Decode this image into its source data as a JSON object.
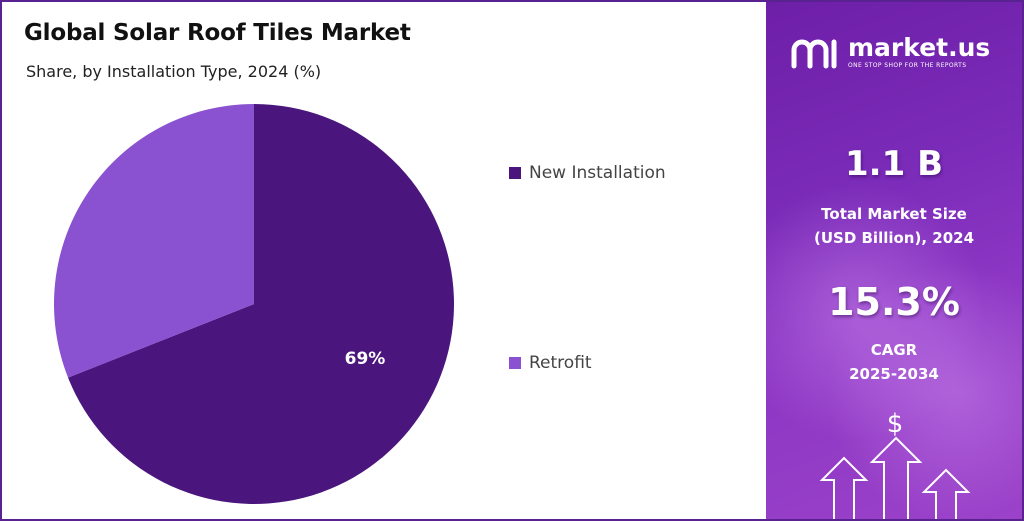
{
  "title": "Global Solar Roof Tiles Market",
  "subtitle": "Share, by Installation Type, 2024 (%)",
  "chart_data": {
    "type": "pie",
    "title": "Global Solar Roof Tiles Market",
    "subtitle": "Share, by Installation Type, 2024 (%)",
    "categories": [
      "New Installation",
      "Retrofit"
    ],
    "values": [
      69,
      31
    ],
    "data_labels": [
      "69%",
      ""
    ],
    "colors": [
      "#4a167e",
      "#8a52d0"
    ],
    "legend_position": "right"
  },
  "sidebar": {
    "brand_name": "market.us",
    "brand_tagline": "ONE STOP SHOP FOR THE REPORTS",
    "market_size_value": "1.1 B",
    "market_size_label_line1": "Total Market Size",
    "market_size_label_line2": "(USD Billion), 2024",
    "cagr_value": "15.3%",
    "cagr_label_line1": "CAGR",
    "cagr_label_line2": "2025-2034",
    "dollar_symbol": "$"
  },
  "colors": {
    "frame": "#5a2290",
    "panel_gradient_start": "#6e1fa8",
    "panel_gradient_end": "#9b42c9"
  },
  "icons": [
    "market-us-logo-icon",
    "dollar-icon",
    "up-arrow-icon"
  ]
}
